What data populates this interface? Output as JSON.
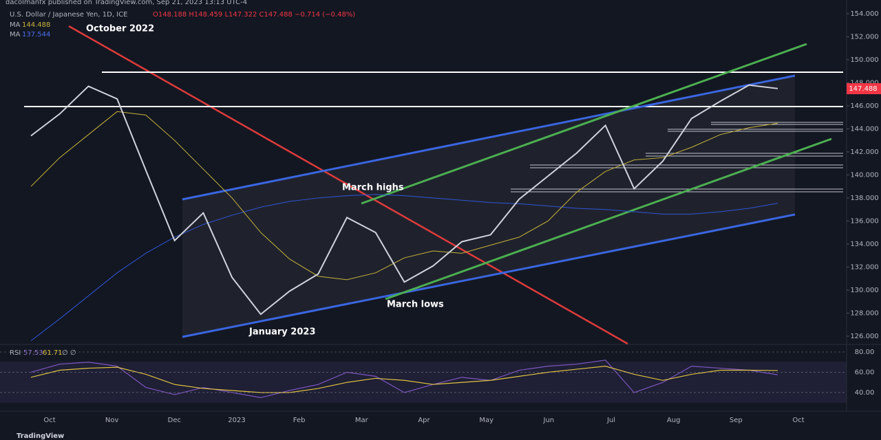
{
  "chart_data": {
    "type": "line",
    "publisher": "dacolmanfx published on TradingView.com, Sep 21, 2023 13:13 UTC-4",
    "title": "U.S. Dollar / Japanese Yen, 1D, ICE",
    "ohlc": "O148.188 H148.459 L147.322 C147.488 −0.714 (−0.48%)",
    "ma_label": "MA",
    "rsi_label": "RSI",
    "rsi_extra": "∅ ∅",
    "last_price": 147.488,
    "last_price_label": "147.488",
    "annotations": [
      "October 2022",
      "March highs",
      "March lows",
      "January 2023"
    ],
    "footer": "TradingView",
    "xticks": [
      "Oct",
      "Nov",
      "Dec",
      "2023",
      "Feb",
      "Mar",
      "Apr",
      "May",
      "Jun",
      "Jul",
      "Aug",
      "Sep",
      "Oct"
    ],
    "ylim": [
      125.34,
      155.19
    ],
    "yticks": [
      {
        "value": 126,
        "label": "126.000"
      },
      {
        "value": 128,
        "label": "128.000"
      },
      {
        "value": 130,
        "label": "130.000"
      },
      {
        "value": 132,
        "label": "132.000"
      },
      {
        "value": 134,
        "label": "134.000"
      },
      {
        "value": 136,
        "label": "136.000"
      },
      {
        "value": 138,
        "label": "138.000"
      },
      {
        "value": 140,
        "label": "140.000"
      },
      {
        "value": 142,
        "label": "142.000"
      },
      {
        "value": 144,
        "label": "144.000"
      },
      {
        "value": 146,
        "label": "146.000"
      },
      {
        "value": 148,
        "label": "148.000"
      },
      {
        "value": 150,
        "label": "150.000"
      },
      {
        "value": 152,
        "label": "152.000"
      },
      {
        "value": 154,
        "label": "154.000"
      }
    ],
    "series": [
      {
        "name": "USD/JPY",
        "color": "#d1d4dc",
        "values": [
          143.4,
          145.3,
          147.7,
          146.6,
          140.4,
          134.3,
          136.7,
          131.1,
          127.9,
          129.9,
          131.4,
          136.3,
          135.0,
          130.7,
          132.1,
          134.2,
          134.8,
          137.9,
          139.9,
          141.9,
          144.3,
          138.8,
          141.2,
          144.9,
          146.4,
          147.8,
          147.5
        ]
      },
      {
        "name": "MA",
        "color": "#c8b33b",
        "values": [
          139,
          141.5,
          143.5,
          145.5,
          145.2,
          143,
          140.5,
          138,
          135,
          132.7,
          131.2,
          130.9,
          131.5,
          132.8,
          133.4,
          133.2,
          133.9,
          134.6,
          136,
          138.5,
          140.3,
          141.3,
          141.5,
          142.4,
          143.5,
          144.1,
          144.488
        ]
      },
      {
        "name": "MA",
        "color": "#2f56d8",
        "values": [
          125.6,
          127.5,
          129.5,
          131.5,
          133.2,
          134.6,
          135.7,
          136.5,
          137.2,
          137.7,
          138.0,
          138.2,
          138.3,
          138.2,
          138.0,
          137.8,
          137.6,
          137.5,
          137.3,
          137.1,
          137.0,
          136.8,
          136.6,
          136.6,
          136.8,
          137.1,
          137.544
        ]
      }
    ],
    "rsi_ylim": [
      23.7,
      86.1
    ],
    "rsi_yticks": [
      {
        "value": 40,
        "label": "40.00"
      },
      {
        "value": 60,
        "label": "60.00"
      },
      {
        "value": 80,
        "label": "80.00"
      }
    ],
    "rsi_series": [
      {
        "name": "RSI",
        "color": "#7e57c2",
        "values": [
          60,
          68,
          70,
          66,
          45,
          38,
          45,
          40,
          35,
          42,
          48,
          60,
          56,
          40,
          48,
          55,
          52,
          62,
          66,
          68,
          72,
          40,
          50,
          66,
          64,
          62,
          57.53
        ]
      },
      {
        "name": "RSI MA",
        "color": "#e0c341",
        "values": [
          55,
          62,
          64,
          65,
          58,
          48,
          44,
          42,
          40,
          40,
          44,
          50,
          54,
          52,
          48,
          50,
          52,
          56,
          60,
          63,
          66,
          58,
          52,
          58,
          62,
          62,
          61.71
        ]
      }
    ]
  }
}
